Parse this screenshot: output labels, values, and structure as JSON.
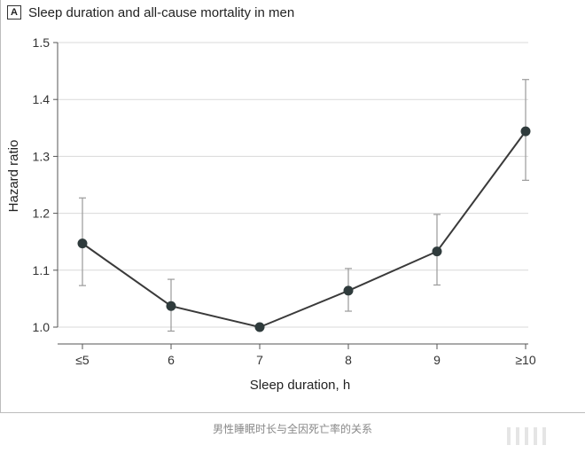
{
  "figure": {
    "panel_label": "A",
    "caption": "男性睡眠时长与全因死亡率的关系"
  },
  "chart_data": {
    "type": "line",
    "title": "Sleep duration and all-cause mortality in men",
    "xlabel": "Sleep duration, h",
    "ylabel": "Hazard ratio",
    "categories": [
      "≤5",
      "6",
      "7",
      "8",
      "9",
      "≥10"
    ],
    "series": [
      {
        "values": [
          1.147,
          1.037,
          1.0,
          1.064,
          1.133,
          1.344
        ],
        "ci_lower": [
          1.073,
          0.993,
          1.0,
          1.028,
          1.074,
          1.258
        ],
        "ci_upper": [
          1.227,
          1.084,
          1.0,
          1.103,
          1.198,
          1.435
        ]
      }
    ],
    "ylim": [
      1.0,
      1.5
    ],
    "yticks": [
      1.0,
      1.1,
      1.2,
      1.3,
      1.4,
      1.5
    ],
    "ytick_labels": [
      "1.0",
      "1.1",
      "1.2",
      "1.3",
      "1.4",
      "1.5"
    ],
    "grid": true,
    "colors": {
      "line": "#3a3a3a",
      "marker": "#2f3b3c",
      "error_bar": "#9a9a9a",
      "grid": "#d9d9d9"
    }
  }
}
